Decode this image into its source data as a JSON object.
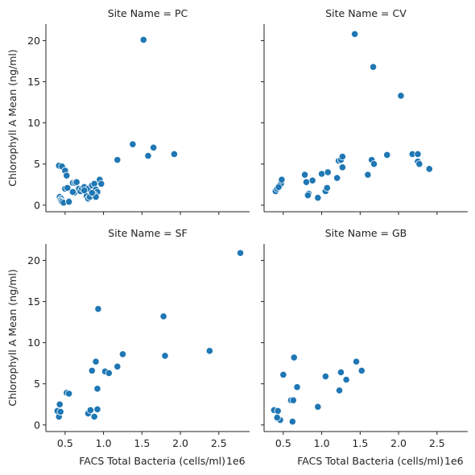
{
  "colors": {
    "marker": "#1f77b4",
    "axis": "#222222",
    "background": "#ffffff"
  },
  "chart_data": {
    "type": "scatter",
    "layout": "2x2 facet grid, shared axes",
    "xlabel": "FACS Total Bacteria (cells/ml)",
    "xlabel_offset": "1e6",
    "ylabel": "Chlorophyll A Mean (ng/ml)",
    "xlim": [
      0.25,
      2.9
    ],
    "ylim": [
      -0.8,
      22
    ],
    "xticks": [
      0.5,
      1.0,
      1.5,
      2.0,
      2.5
    ],
    "xtick_labels": [
      "0.5",
      "1.0",
      "1.5",
      "2.0",
      "2.5"
    ],
    "yticks": [
      0,
      5,
      10,
      15,
      20
    ],
    "ytick_labels": [
      "0",
      "5",
      "10",
      "15",
      "20"
    ],
    "grid": false,
    "panels": [
      {
        "title": "Site Name = PC",
        "x": [
          0.42,
          0.46,
          0.43,
          0.45,
          0.5,
          0.52,
          0.5,
          0.53,
          0.44,
          0.45,
          0.46,
          0.48,
          0.55,
          0.55,
          0.6,
          0.63,
          0.62,
          0.65,
          0.68,
          0.7,
          0.72,
          0.75,
          0.78,
          0.8,
          0.82,
          0.8,
          0.85,
          0.88,
          0.9,
          0.92,
          0.95,
          0.97,
          0.88,
          0.9,
          0.85,
          1.18,
          1.38,
          1.52,
          1.58,
          1.65,
          1.92,
          0.75,
          0.6
        ],
        "y": [
          4.8,
          4.7,
          1.0,
          0.8,
          4.2,
          3.6,
          2.0,
          2.1,
          0.6,
          0.5,
          0.4,
          0.3,
          0.5,
          0.4,
          2.7,
          2.7,
          1.5,
          2.8,
          2.0,
          1.7,
          2.0,
          2.2,
          1.1,
          0.8,
          1.0,
          2.0,
          2.4,
          2.6,
          1.9,
          1.6,
          3.1,
          2.6,
          1.3,
          1.0,
          1.5,
          5.5,
          7.4,
          20.1,
          6.0,
          7.0,
          6.2,
          1.8,
          1.6
        ]
      },
      {
        "title": "Site Name = CV",
        "x": [
          0.4,
          0.42,
          0.45,
          0.47,
          0.44,
          0.48,
          0.78,
          0.8,
          0.83,
          0.82,
          0.88,
          0.95,
          1.0,
          1.05,
          1.07,
          1.08,
          1.2,
          1.22,
          1.25,
          1.27,
          1.27,
          1.6,
          1.65,
          1.68,
          1.85,
          2.18,
          2.25,
          2.25,
          2.27,
          2.4,
          1.43,
          1.67,
          2.03
        ],
        "y": [
          1.7,
          2.0,
          2.4,
          2.6,
          2.2,
          3.1,
          3.7,
          2.8,
          1.4,
          1.2,
          3.0,
          0.9,
          3.8,
          1.7,
          2.1,
          4.0,
          3.3,
          5.4,
          5.5,
          5.9,
          4.6,
          3.7,
          5.5,
          5.0,
          6.1,
          6.2,
          6.2,
          5.3,
          5.0,
          4.4,
          20.8,
          16.8,
          13.3
        ]
      },
      {
        "title": "Site Name = SF",
        "x": [
          0.4,
          0.43,
          0.42,
          0.44,
          0.52,
          0.55,
          0.8,
          0.83,
          0.88,
          0.9,
          0.92,
          0.92,
          0.93,
          1.02,
          1.07,
          1.18,
          1.25,
          1.78,
          1.8,
          2.38,
          2.78,
          0.85
        ],
        "y": [
          1.7,
          2.5,
          1.0,
          1.6,
          3.9,
          3.8,
          1.4,
          1.8,
          1.0,
          7.7,
          4.4,
          1.9,
          14.1,
          6.5,
          6.3,
          7.1,
          8.6,
          13.2,
          8.4,
          9.0,
          20.9,
          6.6
        ]
      },
      {
        "title": "Site Name = GB",
        "x": [
          0.38,
          0.42,
          0.44,
          0.43,
          0.46,
          0.5,
          0.6,
          0.62,
          0.63,
          0.64,
          0.68,
          0.95,
          1.05,
          1.25,
          1.23,
          1.32,
          1.45,
          1.52,
          0.42
        ],
        "y": [
          1.8,
          1.0,
          0.7,
          1.7,
          0.6,
          6.1,
          3.0,
          0.4,
          3.0,
          8.2,
          4.6,
          2.2,
          5.9,
          6.4,
          4.2,
          5.5,
          7.7,
          6.6,
          0.9
        ]
      }
    ]
  }
}
